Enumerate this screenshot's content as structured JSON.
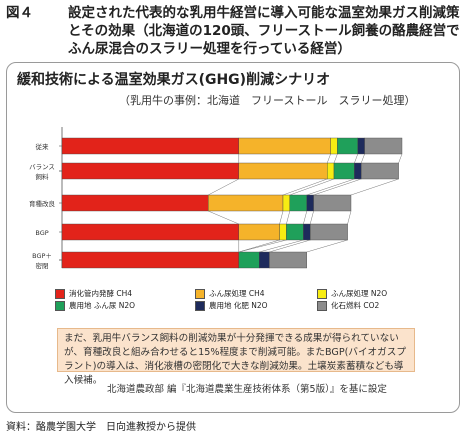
{
  "figure": {
    "number": "図４",
    "caption": "設定された代表的な乳用牛経営に導入可能な温室効果ガス削減策とその効果（北海道の120頭、フリーストール飼養の酪農経営でふん尿混合のスラリー処理を行っている経営）",
    "source": "資料：酪農学園大学　日向進教授から提供"
  },
  "panel": {
    "note": "まだ、乳用牛バランス飼料の削減効果が十分発揮できる成果が得られていないが、育種改良と組み合わせると15%程度まで削減可能。またBGP(バイオガスプラント)の導入は、消化液槽の密閉化で大きな削減効果。土壌炭素蓄積なども導入候補。",
    "source": "北海道農政部 編『北海道農業生産技術体系（第5版）』を基に設定"
  },
  "chart_data": {
    "type": "bar",
    "orientation": "horizontal",
    "stacked": true,
    "title": "緩和技術による温室効果ガス(GHG)削減シナリオ",
    "subtitle": "（乳用牛の事例：北海道　フリーストール　スラリー処理）",
    "categories": [
      "従来",
      "バランス飼料",
      "育種改良",
      "BGP",
      "BGP＋密閉"
    ],
    "category_labels": [
      [
        "従来"
      ],
      [
        "バランス",
        "飼料"
      ],
      [
        "育種改良"
      ],
      [
        "BGP"
      ],
      [
        "BGP＋",
        "密閉"
      ]
    ],
    "legend_position": "bottom",
    "grid": false,
    "series": [
      {
        "name": "消化管内発酵 CH4",
        "color": "#e2231a",
        "values": [
          52,
          52,
          43,
          52,
          52
        ]
      },
      {
        "name": "ふん尿処理 CH4",
        "color": "#f5b32a",
        "values": [
          27,
          26,
          22,
          12,
          0
        ]
      },
      {
        "name": "ふん尿処理 N2O",
        "color": "#f7ec13",
        "values": [
          2,
          2,
          2,
          2,
          0
        ]
      },
      {
        "name": "農用地 ふん尿 N2O",
        "color": "#1fa05a",
        "values": [
          6,
          6,
          5,
          5,
          6
        ]
      },
      {
        "name": "農用地 化肥 N2O",
        "color": "#1e2b5c",
        "values": [
          2,
          2,
          2,
          2,
          3
        ]
      },
      {
        "name": "化石燃料 CO2",
        "color": "#8c8c8c",
        "values": [
          11,
          11,
          11,
          11,
          11
        ]
      }
    ]
  }
}
